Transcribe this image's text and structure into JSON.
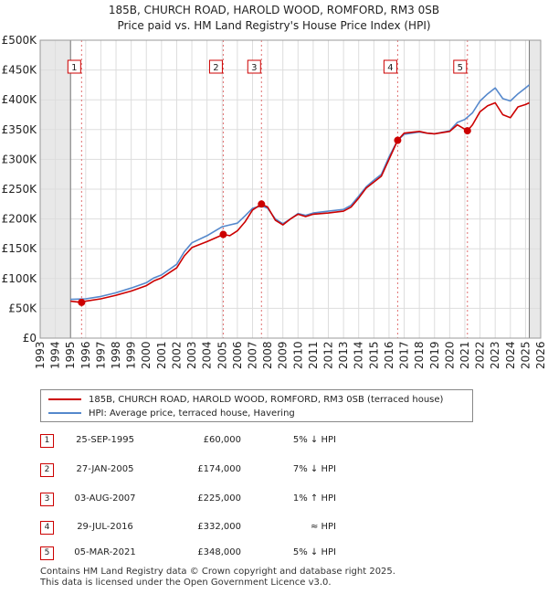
{
  "title_line1": "185B, CHURCH ROAD, HAROLD WOOD, ROMFORD, RM3 0SB",
  "title_line2": "Price paid vs. HM Land Registry's House Price Index (HPI)",
  "chart_data": {
    "type": "line",
    "x_range": [
      1993,
      2026
    ],
    "ylim": [
      0,
      500000
    ],
    "y_ticks": [
      0,
      50000,
      100000,
      150000,
      200000,
      250000,
      300000,
      350000,
      400000,
      450000,
      500000
    ],
    "y_tick_labels": [
      "£0",
      "£50K",
      "£100K",
      "£150K",
      "£200K",
      "£250K",
      "£300K",
      "£350K",
      "£400K",
      "£450K",
      "£500K"
    ],
    "x_ticks": [
      1993,
      1994,
      1995,
      1996,
      1997,
      1998,
      1999,
      2000,
      2001,
      2002,
      2003,
      2004,
      2005,
      2006,
      2007,
      2008,
      2009,
      2010,
      2011,
      2012,
      2013,
      2014,
      2015,
      2016,
      2017,
      2018,
      2019,
      2020,
      2021,
      2022,
      2023,
      2024,
      2025,
      2026
    ],
    "x_tick_labels": [
      "1993",
      "1994",
      "1995",
      "1996",
      "1997",
      "1998",
      "1999",
      "2000",
      "2001",
      "2002",
      "2003",
      "2004",
      "2005",
      "2006",
      "2007",
      "2008",
      "2009",
      "2010",
      "2011",
      "2012",
      "2013",
      "2014",
      "2015",
      "2016",
      "2017",
      "2018",
      "2019",
      "2020",
      "2021",
      "2022",
      "2023",
      "2024",
      "2025",
      "2026"
    ],
    "data_start": 1995.0,
    "data_end": 2025.25,
    "series": [
      {
        "name": "185B, CHURCH ROAD, HAROLD WOOD, ROMFORD, RM3 0SB (terraced house)",
        "color": "#cc0000",
        "x": [
          1995.0,
          1995.73,
          1996.0,
          1997.0,
          1998.0,
          1999.0,
          2000.0,
          2000.5,
          2001.0,
          2002.0,
          2002.5,
          2003.0,
          2004.0,
          2005.07,
          2005.5,
          2006.0,
          2006.5,
          2007.0,
          2007.59,
          2008.0,
          2008.5,
          2009.0,
          2009.5,
          2010.0,
          2010.5,
          2011.0,
          2012.0,
          2013.0,
          2013.5,
          2014.0,
          2014.5,
          2015.0,
          2015.5,
          2016.0,
          2016.57,
          2017.0,
          2018.0,
          2018.5,
          2019.0,
          2020.0,
          2020.5,
          2021.17,
          2021.5,
          2022.0,
          2022.5,
          2023.0,
          2023.5,
          2024.0,
          2024.5,
          2025.0,
          2025.25
        ],
        "y": [
          62000,
          60000,
          62000,
          66000,
          72000,
          79000,
          88000,
          96000,
          101000,
          118000,
          138000,
          152000,
          162000,
          174000,
          172000,
          180000,
          195000,
          215000,
          225000,
          220000,
          198000,
          190000,
          200000,
          208000,
          204000,
          208000,
          210000,
          213000,
          220000,
          235000,
          252000,
          262000,
          272000,
          300000,
          332000,
          344000,
          347000,
          344000,
          343000,
          347000,
          358000,
          348000,
          358000,
          380000,
          390000,
          395000,
          375000,
          370000,
          388000,
          392000,
          395000
        ]
      },
      {
        "name": "HPI: Average price, terraced house, Havering",
        "color": "#5588cc",
        "x": [
          1995.0,
          1996.0,
          1997.0,
          1998.0,
          1999.0,
          2000.0,
          2000.5,
          2001.0,
          2002.0,
          2002.5,
          2003.0,
          2004.0,
          2005.0,
          2005.5,
          2006.0,
          2006.5,
          2007.0,
          2007.59,
          2008.0,
          2008.5,
          2009.0,
          2009.5,
          2010.0,
          2010.5,
          2011.0,
          2012.0,
          2013.0,
          2013.5,
          2014.0,
          2014.5,
          2015.0,
          2015.5,
          2016.0,
          2016.57,
          2017.0,
          2018.0,
          2018.5,
          2019.0,
          2020.0,
          2020.5,
          2021.0,
          2021.5,
          2022.0,
          2022.5,
          2023.0,
          2023.5,
          2024.0,
          2024.5,
          2025.0,
          2025.25
        ],
        "y": [
          65000,
          66000,
          70000,
          76000,
          84000,
          93000,
          101000,
          106000,
          124000,
          145000,
          160000,
          172000,
          187000,
          190000,
          193000,
          205000,
          218000,
          222000,
          218000,
          200000,
          192000,
          200000,
          209000,
          206000,
          210000,
          213000,
          216000,
          223000,
          238000,
          254000,
          265000,
          275000,
          304000,
          332000,
          342000,
          346000,
          344000,
          343000,
          348000,
          362000,
          367000,
          378000,
          398000,
          410000,
          420000,
          402000,
          398000,
          410000,
          420000,
          425000
        ]
      }
    ],
    "sales_markers": [
      {
        "label": "1",
        "x": 1995.73,
        "y": 60000
      },
      {
        "label": "2",
        "x": 2005.07,
        "y": 174000
      },
      {
        "label": "3",
        "x": 2007.59,
        "y": 225000
      },
      {
        "label": "4",
        "x": 2016.57,
        "y": 332000
      },
      {
        "label": "5",
        "x": 2021.17,
        "y": 348000
      }
    ]
  },
  "legend": {
    "property_label": "185B, CHURCH ROAD, HAROLD WOOD, ROMFORD, RM3 0SB (terraced house)",
    "hpi_label": "HPI: Average price, terraced house, Havering"
  },
  "sales": [
    {
      "num": "1",
      "date": "25-SEP-1995",
      "price": "£60,000",
      "hpi": "5% ↓ HPI"
    },
    {
      "num": "2",
      "date": "27-JAN-2005",
      "price": "£174,000",
      "hpi": "7% ↓ HPI"
    },
    {
      "num": "3",
      "date": "03-AUG-2007",
      "price": "£225,000",
      "hpi": "1% ↑ HPI"
    },
    {
      "num": "4",
      "date": "29-JUL-2016",
      "price": "£332,000",
      "hpi": "≈ HPI"
    },
    {
      "num": "5",
      "date": "05-MAR-2021",
      "price": "£348,000",
      "hpi": "5% ↓ HPI"
    }
  ],
  "footer": {
    "line1": "Contains HM Land Registry data © Crown copyright and database right 2025.",
    "line2": "This data is licensed under the Open Government Licence v3.0."
  }
}
